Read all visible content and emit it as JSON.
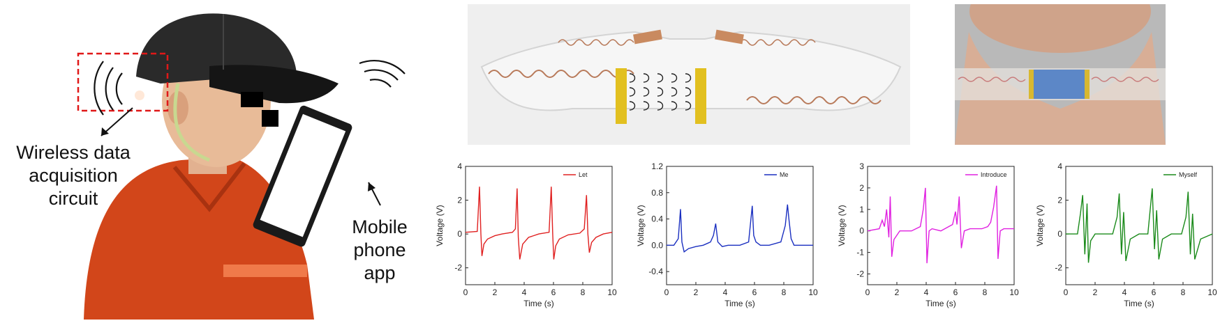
{
  "illustration": {
    "label_left": [
      "Wireless data",
      "acquisition",
      "circuit"
    ],
    "label_right": [
      "Mobile",
      "phone",
      "app"
    ]
  },
  "chart_data": [
    {
      "type": "line",
      "xlabel": "Time (s)",
      "ylabel": "Voltage (V)",
      "xlim": [
        0,
        10
      ],
      "ylim": [
        -3,
        4
      ],
      "xticks": [
        "0",
        "2",
        "4",
        "6",
        "8",
        "10"
      ],
      "yticks": [
        "4",
        "2",
        "0",
        "-2"
      ],
      "series": [
        {
          "name": "Let",
          "color": "#e02020",
          "x": [
            0,
            0.8,
            0.95,
            1.05,
            1.12,
            1.25,
            1.5,
            2,
            2.5,
            3.2,
            3.4,
            3.52,
            3.6,
            3.7,
            3.9,
            4.3,
            5,
            5.7,
            5.85,
            5.95,
            6.02,
            6.15,
            6.4,
            7,
            7.8,
            8.1,
            8.25,
            8.35,
            8.45,
            8.6,
            8.9,
            9.4,
            10
          ],
          "y": [
            0.1,
            0.15,
            2.8,
            0,
            -1.3,
            -0.6,
            -0.3,
            -0.1,
            0,
            0.1,
            0.3,
            2.7,
            -0.2,
            -1.5,
            -0.6,
            -0.2,
            0,
            0.1,
            2.8,
            0,
            -1.5,
            -0.7,
            -0.3,
            -0.05,
            0.05,
            0.3,
            2.3,
            0,
            -1.1,
            -0.5,
            -0.2,
            0,
            0.1
          ]
        }
      ],
      "legend": "top-right"
    },
    {
      "type": "line",
      "xlabel": "Time (s)",
      "ylabel": "Voltage (V)",
      "xlim": [
        0,
        10
      ],
      "ylim": [
        -0.6,
        1.2
      ],
      "xticks": [
        "0",
        "2",
        "4",
        "6",
        "8",
        "10"
      ],
      "yticks": [
        "1.2",
        "0.8",
        "0.4",
        "0.0",
        "-0.4"
      ],
      "series": [
        {
          "name": "Me",
          "color": "#1a2fc0",
          "x": [
            0,
            0.5,
            0.8,
            0.95,
            1.05,
            1.2,
            1.5,
            2,
            2.5,
            3,
            3.2,
            3.35,
            3.5,
            3.8,
            4.2,
            5,
            5.6,
            5.85,
            5.95,
            6.1,
            6.4,
            7,
            7.8,
            8.1,
            8.25,
            8.35,
            8.5,
            8.7,
            9.2,
            10
          ],
          "y": [
            0,
            0,
            0.1,
            0.55,
            0.05,
            -0.1,
            -0.05,
            -0.02,
            0,
            0.05,
            0.15,
            0.33,
            0.05,
            -0.02,
            0,
            0,
            0.05,
            0.6,
            0.15,
            0.05,
            0,
            0,
            0.05,
            0.3,
            0.62,
            0.4,
            0.1,
            0,
            0,
            0
          ]
        }
      ],
      "legend": "top-right"
    },
    {
      "type": "line",
      "xlabel": "Time (s)",
      "ylabel": "Voltage (V)",
      "xlim": [
        0,
        10
      ],
      "ylim": [
        -2.5,
        3
      ],
      "xticks": [
        "0",
        "2",
        "4",
        "6",
        "8",
        "10"
      ],
      "yticks": [
        "3",
        "2",
        "1",
        "0",
        "-1",
        "-2"
      ],
      "series": [
        {
          "name": "Introduce",
          "color": "#e020e0",
          "x": [
            0,
            0.8,
            1.0,
            1.15,
            1.3,
            1.45,
            1.55,
            1.65,
            1.8,
            2.2,
            3,
            3.6,
            3.8,
            3.95,
            4.05,
            4.2,
            4.4,
            5,
            5.8,
            6.0,
            6.1,
            6.25,
            6.4,
            6.6,
            7,
            7.8,
            8.2,
            8.4,
            8.6,
            8.8,
            8.9,
            9.05,
            9.3,
            10
          ],
          "y": [
            0,
            0.1,
            0.5,
            0.2,
            1.0,
            -0.3,
            1.6,
            -1.2,
            -0.4,
            0,
            0,
            0.2,
            1.0,
            2.0,
            -1.5,
            0,
            0.1,
            0,
            0.3,
            0.9,
            0.3,
            1.6,
            -0.8,
            0,
            0.1,
            0.1,
            0.2,
            0.4,
            1.1,
            2.1,
            -1.3,
            0,
            0.1,
            0.1
          ]
        }
      ],
      "legend": "top-right"
    },
    {
      "type": "line",
      "xlabel": "Time (s)",
      "ylabel": "Voltage (V)",
      "xlim": [
        0,
        10
      ],
      "ylim": [
        -3,
        4
      ],
      "xticks": [
        "0",
        "2",
        "4",
        "6",
        "8",
        "10"
      ],
      "yticks": [
        "4",
        "2",
        "0",
        "-2"
      ],
      "series": [
        {
          "name": "Myself",
          "color": "#1a8a1a",
          "x": [
            0,
            0.8,
            1.0,
            1.15,
            1.3,
            1.45,
            1.55,
            1.7,
            2.0,
            2.5,
            3.2,
            3.5,
            3.65,
            3.8,
            3.95,
            4.1,
            4.4,
            5,
            5.6,
            5.9,
            6.05,
            6.2,
            6.35,
            6.6,
            7.2,
            7.9,
            8.2,
            8.35,
            8.5,
            8.65,
            8.8,
            9.2,
            10
          ],
          "y": [
            0,
            0,
            1.2,
            2.3,
            -1.2,
            1.8,
            -1.7,
            -0.4,
            0,
            0,
            0,
            1.0,
            2.4,
            -1.2,
            1.3,
            -1.6,
            -0.3,
            0,
            0,
            2.7,
            -0.9,
            1.4,
            -1.5,
            -0.3,
            0,
            0,
            1.0,
            2.5,
            -1.2,
            1.2,
            -1.5,
            -0.3,
            0
          ]
        }
      ],
      "legend": "top-right"
    }
  ]
}
